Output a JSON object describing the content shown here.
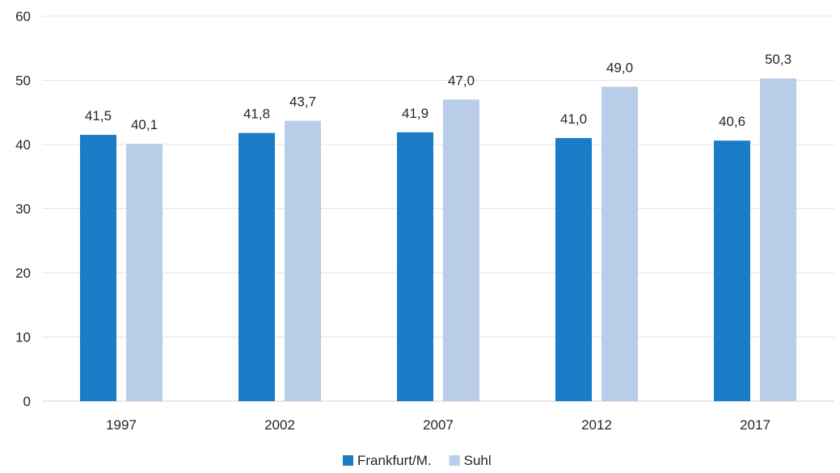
{
  "chart_data": {
    "type": "bar",
    "categories": [
      "1997",
      "2002",
      "2007",
      "2012",
      "2017"
    ],
    "series": [
      {
        "name": "Frankfurt/M.",
        "color": "#1a7bc6",
        "values": [
          41.5,
          41.8,
          41.9,
          41.0,
          40.6
        ],
        "labels": [
          "41,5",
          "41,8",
          "41,9",
          "41,0",
          "40,6"
        ]
      },
      {
        "name": "Suhl",
        "color": "#b9cde8",
        "values": [
          40.1,
          43.7,
          47.0,
          49.0,
          50.3
        ],
        "labels": [
          "40,1",
          "43,7",
          "47,0",
          "49,0",
          "50,3"
        ]
      }
    ],
    "y_ticks": [
      "0",
      "10",
      "20",
      "30",
      "40",
      "50",
      "60"
    ],
    "ylim": [
      0,
      60
    ],
    "grid": true,
    "legend_position": "bottom-center",
    "gridline_color": "#e3e3e3"
  }
}
